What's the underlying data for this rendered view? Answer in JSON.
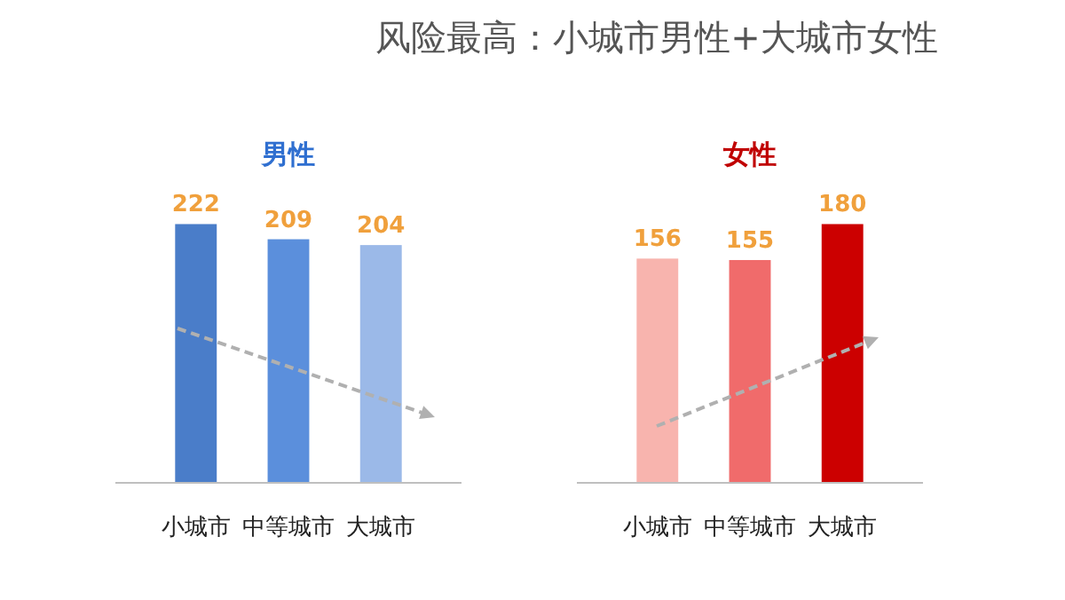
{
  "chart_data": [
    {
      "type": "other",
      "title": "风险最高：小城市男性+大城市女性"
    },
    {
      "type": "bar",
      "title": "男性",
      "categories": [
        "小城市",
        "中等城市",
        "大城市"
      ],
      "values": [
        222,
        209,
        204
      ],
      "colors": [
        "#4a7dc9",
        "#5b8fdc",
        "#9bb9e8"
      ],
      "data_labels": true
    },
    {
      "type": "bar",
      "title": "女性",
      "categories": [
        "小城市",
        "中等城市",
        "大城市"
      ],
      "values": [
        156,
        155,
        180
      ],
      "colors": [
        "#f8b4ae",
        "#f06b6b",
        "#cc0000"
      ],
      "data_labels": true
    }
  ]
}
